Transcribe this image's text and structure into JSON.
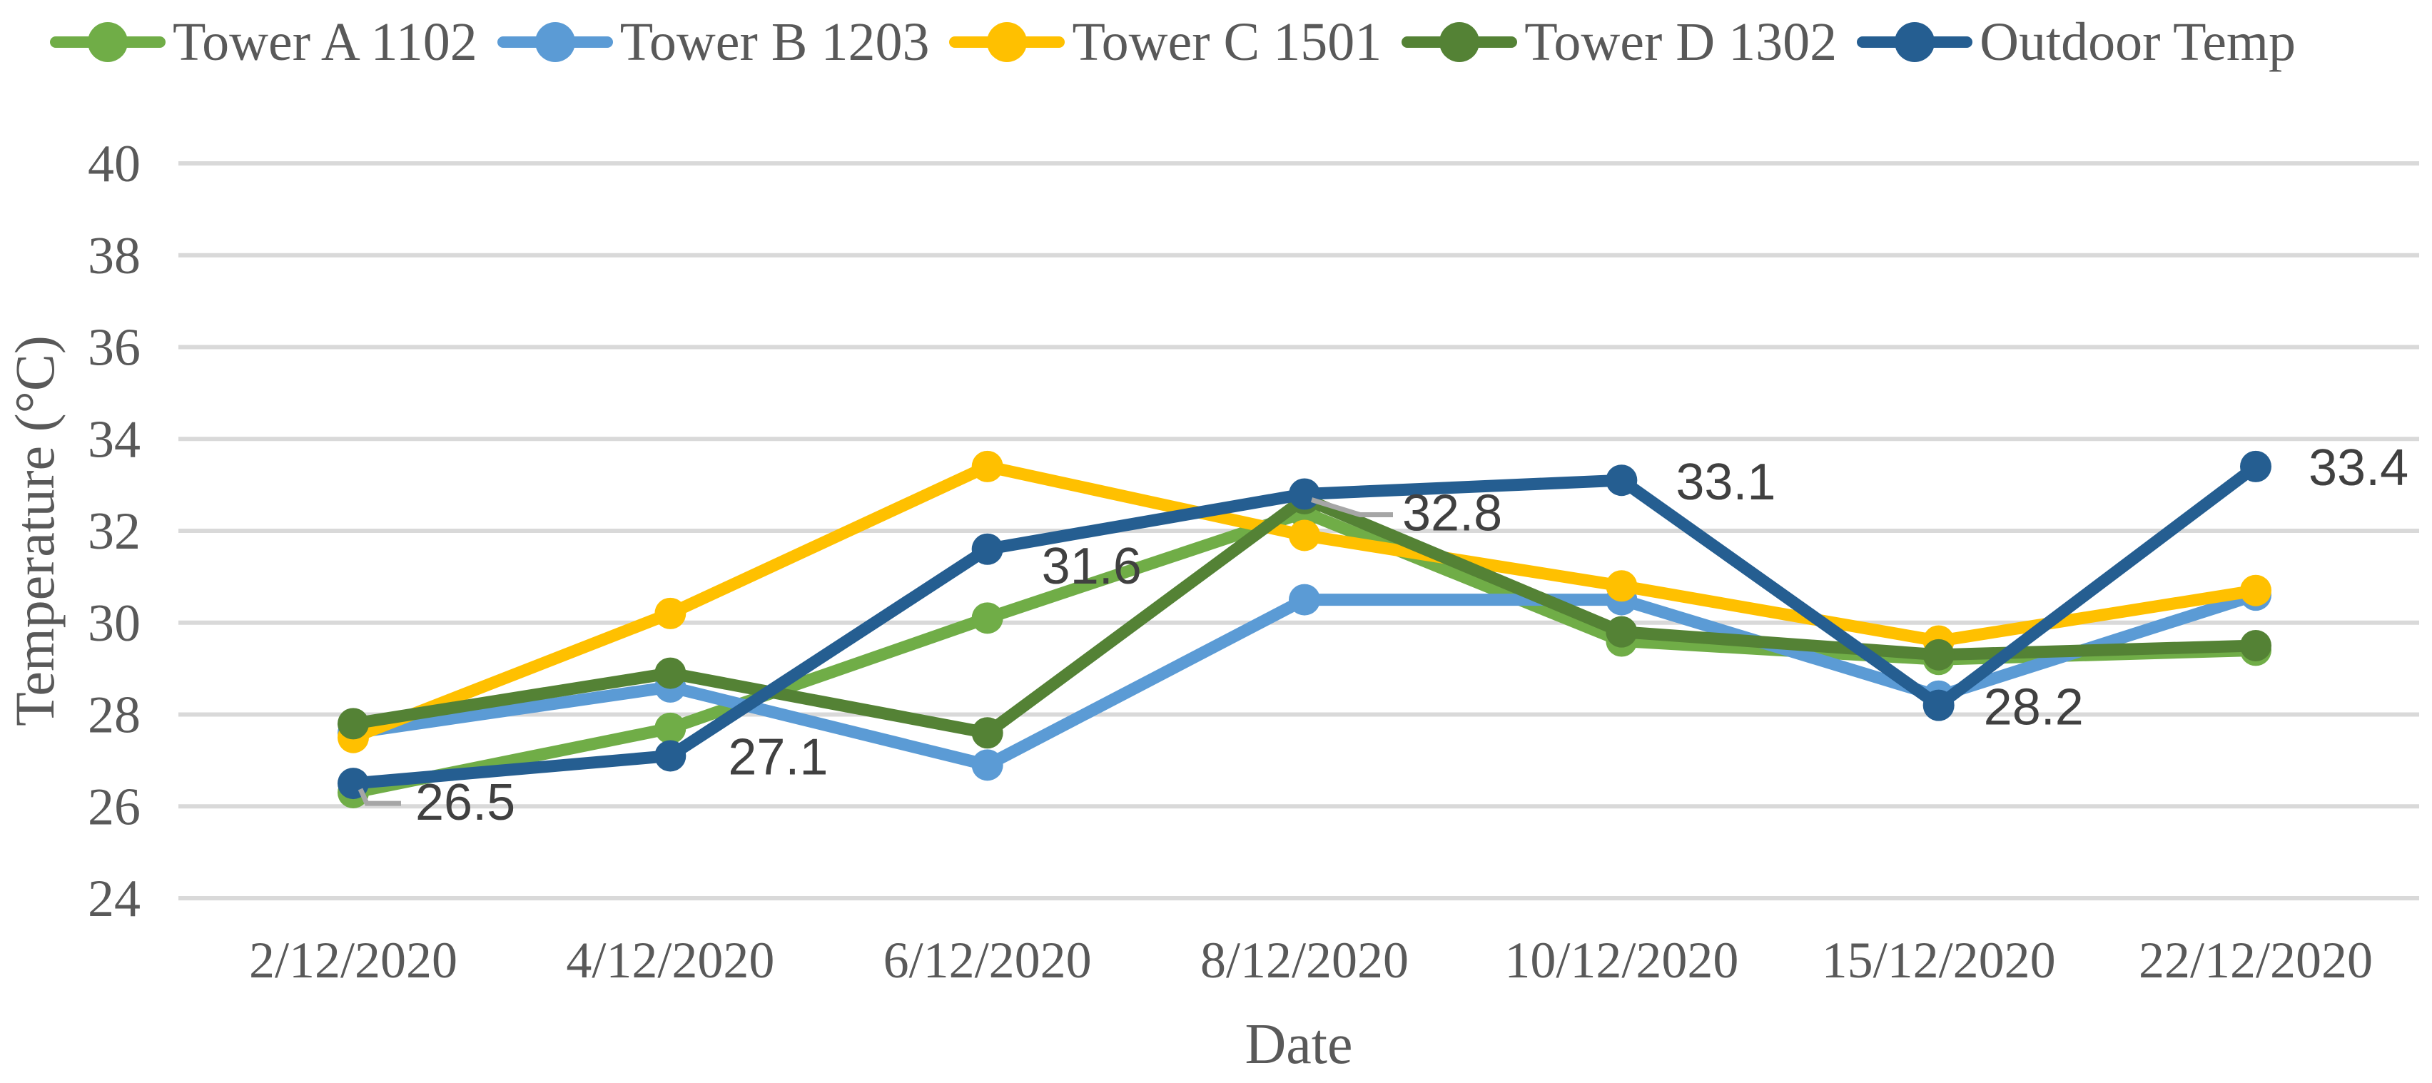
{
  "chart_data": {
    "type": "line",
    "title": "",
    "xlabel": "Date",
    "ylabel": "Temperature (°C)",
    "ylim": [
      24,
      40
    ],
    "ytick_step": 2,
    "grid": true,
    "legend_position": "top",
    "categories": [
      "2/12/2020",
      "4/12/2020",
      "6/12/2020",
      "8/12/2020",
      "10/12/2020",
      "15/12/2020",
      "22/12/2020"
    ],
    "series": [
      {
        "name": "Tower A 1102",
        "color": "#70AD47",
        "values": [
          26.3,
          27.7,
          30.1,
          32.4,
          29.6,
          29.2,
          29.4
        ],
        "data_labels": false
      },
      {
        "name": "Tower B 1203",
        "color": "#5B9BD5",
        "values": [
          27.6,
          28.6,
          26.9,
          30.5,
          30.5,
          28.4,
          30.6
        ],
        "data_labels": false
      },
      {
        "name": "Tower C 1501",
        "color": "#FFC000",
        "values": [
          27.5,
          30.2,
          33.4,
          31.9,
          30.8,
          29.6,
          30.7
        ],
        "data_labels": false
      },
      {
        "name": "Tower D 1302",
        "color": "#548235",
        "values": [
          27.8,
          28.9,
          27.6,
          32.7,
          29.8,
          29.3,
          29.5
        ],
        "data_labels": false
      },
      {
        "name": "Outdoor Temp",
        "color": "#255E91",
        "values": [
          26.5,
          27.1,
          31.6,
          32.8,
          33.1,
          28.2,
          33.4
        ],
        "data_labels": true
      }
    ],
    "data_label_texts": [
      "26.5",
      "27.1",
      "31.6",
      "32.8",
      "33.1",
      "28.2",
      "33.4"
    ],
    "ytick_labels": [
      "24",
      "26",
      "28",
      "30",
      "32",
      "34",
      "36",
      "38",
      "40"
    ],
    "colors": {
      "gridline": "#D9D9D9",
      "axis_text": "#595959",
      "data_label_text": "#404040",
      "leader_line": "#A6A6A6",
      "background": "#FFFFFF"
    }
  }
}
